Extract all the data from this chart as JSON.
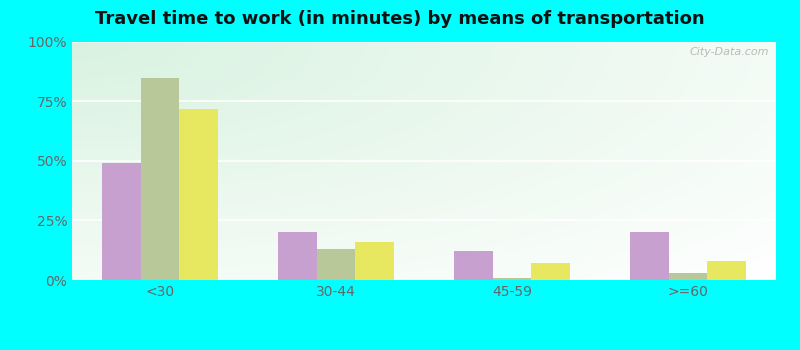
{
  "title": "Travel time to work (in minutes) by means of transportation",
  "categories": [
    "<30",
    "30-44",
    "45-59",
    ">=60"
  ],
  "series": {
    "Public transportation - Arkansas": [
      49,
      20,
      12,
      20
    ],
    "Other means - Lowell": [
      85,
      13,
      1,
      3
    ],
    "Other means - Arkansas": [
      72,
      16,
      7,
      8
    ]
  },
  "colors": {
    "Public transportation - Arkansas": "#c8a0d0",
    "Other means - Lowell": "#b8c898",
    "Other means - Arkansas": "#e8e860"
  },
  "ylim": [
    0,
    100
  ],
  "yticks": [
    0,
    25,
    50,
    75,
    100
  ],
  "ytick_labels": [
    "0%",
    "25%",
    "50%",
    "75%",
    "100%"
  ],
  "background_color": "#00ffff",
  "bar_width": 0.22,
  "watermark": "City-Data.com",
  "grid_color": "#ccddcc",
  "tick_color": "#666666",
  "title_fontsize": 13
}
